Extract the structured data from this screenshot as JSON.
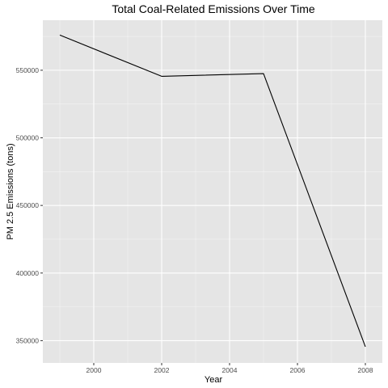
{
  "chart_data": {
    "type": "line",
    "title": "Total Coal-Related Emissions Over Time",
    "xlabel": "Year",
    "ylabel": "PM 2.5 Emissions (tons)",
    "x": [
      1999,
      2002,
      2005,
      2008
    ],
    "series": [
      {
        "values": [
          576000,
          545500,
          547500,
          345500
        ]
      }
    ],
    "xlim": [
      1998.5,
      2008.5
    ],
    "ylim": [
      333500,
      587000
    ],
    "x_ticks": [
      2000,
      2002,
      2004,
      2006,
      2008
    ],
    "x_tick_labels": [
      "2000",
      "2002",
      "2004",
      "2006",
      "2008"
    ],
    "y_ticks": [
      350000,
      400000,
      450000,
      500000,
      550000
    ],
    "y_tick_labels": [
      "350000",
      "400000",
      "450000",
      "500000",
      "550000"
    ],
    "grid": true,
    "legend": "none",
    "colors": {
      "panel_background": "#e5e5e5",
      "major_grid": "#ffffff",
      "line": "#000000",
      "tick_text": "#4d4d4d",
      "tick_mark": "#333333"
    }
  }
}
